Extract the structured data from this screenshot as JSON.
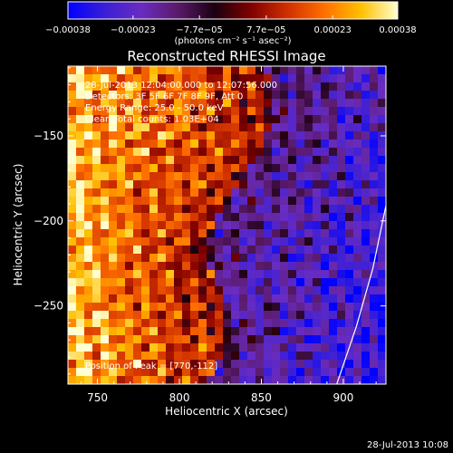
{
  "chart_data": {
    "type": "heatmap",
    "title": "Reconstructed RHESSI Image",
    "xlabel": "Heliocentric X (arcsec)",
    "ylabel": "Heliocentric Y (arcsec)",
    "xlim": [
      732,
      926
    ],
    "ylim": [
      -296,
      -109
    ],
    "x_ticks": [
      750,
      800,
      850,
      900
    ],
    "x_tick_labels": [
      "750",
      "800",
      "850",
      "900"
    ],
    "y_ticks": [
      -150,
      -200,
      -250
    ],
    "y_tick_labels": [
      "−150",
      "−200",
      "−250"
    ],
    "colorbar": {
      "min": -0.00038,
      "max": 0.00038,
      "ticks": [
        -0.00038,
        -0.00023,
        -7.7e-05,
        7.7e-05,
        0.00023,
        0.00038
      ],
      "tick_labels": [
        "−0.00038",
        "−0.00023",
        "−7.7e−05",
        "7.7e−05",
        "0.00023",
        "0.00038"
      ],
      "unit_label": "(photons cm⁻² s⁻¹ asec⁻²)",
      "colormap": [
        "#0000ff",
        "#3a1fd6",
        "#6a2cc0",
        "#5a1a6a",
        "#1a0010",
        "#800000",
        "#d03000",
        "#ff7000",
        "#ffc000",
        "#ffffd0"
      ]
    },
    "annotations": [
      "28-Jul-2013 12:04:00.000 to 12:07:56.000",
      "Detectors: 3F 5F 6F 7F 8F 9F, Att 0",
      "Energy Range: 25.0 - 50.0 keV",
      "Clean     Total counts: 1.03E+04"
    ],
    "peak_label": "Position of Peak = [770,-112]",
    "peak_position": [
      770,
      -112
    ],
    "limb_curve": [
      [
        896,
        -296
      ],
      [
        908,
        -262
      ],
      [
        918,
        -228
      ],
      [
        926,
        -191
      ]
    ],
    "grid": false
  },
  "footer": {
    "timestamp": "28-Jul-2013 10:08"
  }
}
